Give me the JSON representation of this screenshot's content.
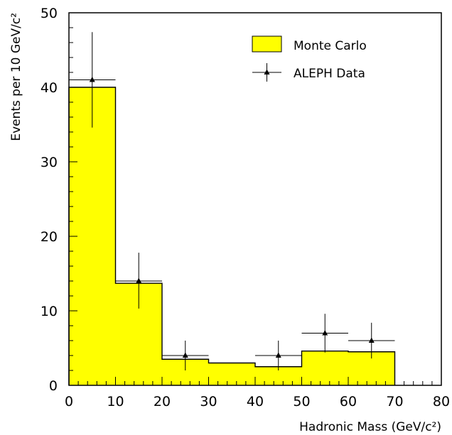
{
  "chart_data": {
    "type": "bar",
    "xlabel": "Hadronic Mass (GeV/c²)",
    "ylabel": "Events per 10 GeV/c²",
    "xlim": [
      0,
      80
    ],
    "ylim": [
      0,
      50
    ],
    "x_ticks": [
      0,
      10,
      20,
      30,
      40,
      50,
      60,
      70,
      80
    ],
    "y_ticks": [
      0,
      10,
      20,
      30,
      40,
      50
    ],
    "x_tick_labels": [
      "0",
      "10",
      "20",
      "30",
      "40",
      "50",
      "60",
      "70",
      "80"
    ],
    "y_tick_labels": [
      "0",
      "10",
      "20",
      "30",
      "40",
      "50"
    ],
    "grid": false,
    "legend_position": "top-right",
    "series": [
      {
        "name": "Monte Carlo",
        "kind": "histogram",
        "color": "#ffff00",
        "bins": [
          {
            "x0": 0,
            "x1": 10,
            "value": 40.0
          },
          {
            "x0": 10,
            "x1": 20,
            "value": 13.7
          },
          {
            "x0": 20,
            "x1": 30,
            "value": 3.5
          },
          {
            "x0": 30,
            "x1": 40,
            "value": 3.0
          },
          {
            "x0": 40,
            "x1": 50,
            "value": 2.5
          },
          {
            "x0": 50,
            "x1": 60,
            "value": 4.6
          },
          {
            "x0": 60,
            "x1": 70,
            "value": 4.5
          }
        ]
      },
      {
        "name": "ALEPH Data",
        "kind": "points",
        "color": "#000000",
        "points": [
          {
            "x": 5,
            "y": 41,
            "xerr": 5,
            "ylow": 34.6,
            "yhigh": 47.4
          },
          {
            "x": 15,
            "y": 14,
            "xerr": 5,
            "ylow": 10.3,
            "yhigh": 17.8
          },
          {
            "x": 25,
            "y": 4,
            "xerr": 5,
            "ylow": 2.0,
            "yhigh": 6.0
          },
          {
            "x": 45,
            "y": 4,
            "xerr": 5,
            "ylow": 2.0,
            "yhigh": 6.0
          },
          {
            "x": 55,
            "y": 7,
            "xerr": 5,
            "ylow": 4.4,
            "yhigh": 9.6
          },
          {
            "x": 65,
            "y": 6,
            "xerr": 5,
            "ylow": 3.6,
            "yhigh": 8.4
          }
        ]
      }
    ]
  }
}
